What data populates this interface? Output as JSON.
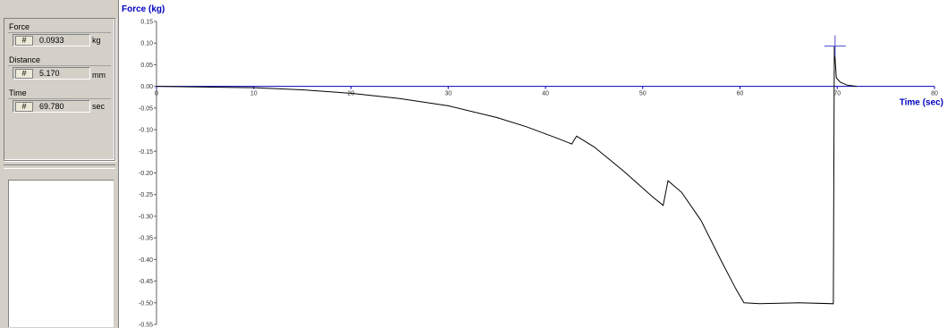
{
  "readout": {
    "force": {
      "label": "Force",
      "button": "#",
      "value": "0.0933",
      "unit": "kg"
    },
    "distance": {
      "label": "Distance",
      "button": "#",
      "value": "5.170",
      "unit": "mm"
    },
    "time": {
      "label": "Time",
      "button": "#",
      "value": "69.780",
      "unit": "sec"
    }
  },
  "colors": {
    "axis": "#0000c0",
    "trace": "#000000",
    "cursor": "#5050d0",
    "panel": "#d4d0c8"
  },
  "chart_data": {
    "type": "line",
    "title": "",
    "ylabel": "Force (kg)",
    "xlabel": "Time (sec)",
    "xlim": [
      0,
      80
    ],
    "ylim": [
      -0.55,
      0.15
    ],
    "x_ticks": [
      "0",
      "10",
      "20",
      "30",
      "40",
      "50",
      "60",
      "70",
      "80"
    ],
    "y_ticks": [
      "0.15",
      "0.10",
      "0.05",
      "0.00",
      "-0.05",
      "-0.10",
      "-0.15",
      "-0.20",
      "-0.25",
      "-0.30",
      "-0.35",
      "-0.40",
      "-0.45",
      "-0.50",
      "-0.55"
    ],
    "grid": false,
    "cursor": {
      "x": 69.78,
      "y": 0.0933
    },
    "series": [
      {
        "x": [
          0,
          10,
          15,
          20,
          25,
          30,
          35,
          38,
          41,
          42.7,
          43.2,
          45,
          48,
          51,
          52.1,
          52.6,
          54,
          56,
          58,
          59.5,
          60.4,
          62,
          66,
          69.6,
          69.7,
          69.9,
          70.3,
          71,
          72
        ],
        "y": [
          0,
          -0.003,
          -0.008,
          -0.016,
          -0.028,
          -0.045,
          -0.072,
          -0.093,
          -0.118,
          -0.133,
          -0.115,
          -0.14,
          -0.195,
          -0.255,
          -0.275,
          -0.218,
          -0.245,
          -0.31,
          -0.4,
          -0.465,
          -0.5,
          -0.502,
          -0.5,
          -0.502,
          0.093,
          0.02,
          0.01,
          0.003,
          0
        ]
      }
    ]
  }
}
